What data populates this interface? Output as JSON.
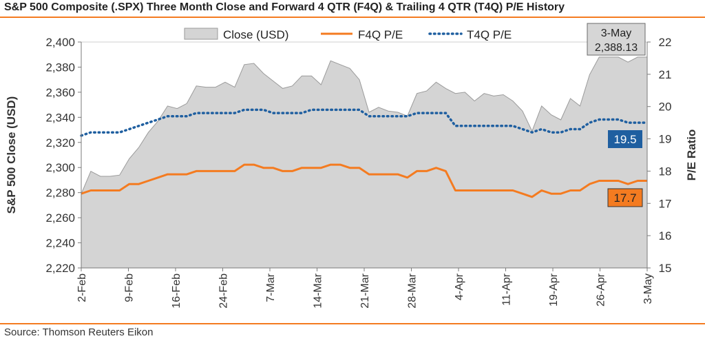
{
  "title": "S&P 500 Composite (.SPX) Three Month Close and Forward 4 QTR (F4Q) & Trailing 4 QTR (T4Q) P/E History",
  "source": "Source: Thomson Reuters Eikon",
  "colors": {
    "accent": "#f47b20",
    "area_fill": "#d4d4d4",
    "area_stroke": "#9a9a9a",
    "t4q": "#1f5fa0",
    "f4q": "#f47b20"
  },
  "chart_data": {
    "type": "area",
    "ylabel": "S&P 500 Close (USD)",
    "y2label": "P/E Ratio",
    "ylim": [
      2220,
      2400
    ],
    "y2lim": [
      15,
      22
    ],
    "yticks": [
      "2,220",
      "2,240",
      "2,260",
      "2,280",
      "2,300",
      "2,320",
      "2,340",
      "2,360",
      "2,380",
      "2,400"
    ],
    "y2ticks": [
      "15",
      "16",
      "17",
      "18",
      "19",
      "20",
      "21",
      "22"
    ],
    "xticklabels": [
      "2-Feb",
      "9-Feb",
      "16-Feb",
      "24-Feb",
      "7-Mar",
      "14-Mar",
      "21-Mar",
      "28-Mar",
      "4-Apr",
      "11-Apr",
      "19-Apr",
      "26-Apr",
      "3-May"
    ],
    "legend": {
      "position": "top",
      "entries": [
        "Close (USD)",
        "F4Q P/E",
        "T4Q P/E"
      ]
    },
    "series": [
      {
        "name": "Close (USD)",
        "axis": "left",
        "values": [
          2279,
          2297,
          2293,
          2293,
          2294,
          2307,
          2316,
          2328,
          2337,
          2349,
          2347,
          2351,
          2365,
          2364,
          2364,
          2368,
          2364,
          2382,
          2383,
          2375,
          2369,
          2363,
          2365,
          2373,
          2373,
          2366,
          2385,
          2382,
          2379,
          2370,
          2344,
          2348,
          2345,
          2344,
          2341,
          2359,
          2361,
          2368,
          2363,
          2359,
          2360,
          2353,
          2359,
          2357,
          2358,
          2353,
          2345,
          2329,
          2349,
          2342,
          2338,
          2355,
          2349,
          2374,
          2388,
          2388,
          2388,
          2384,
          2388,
          2388
        ]
      },
      {
        "name": "F4Q P/E",
        "axis": "right",
        "values": [
          17.3,
          17.4,
          17.4,
          17.4,
          17.4,
          17.6,
          17.6,
          17.7,
          17.8,
          17.9,
          17.9,
          17.9,
          18.0,
          18.0,
          18.0,
          18.0,
          18.0,
          18.2,
          18.2,
          18.1,
          18.1,
          18.0,
          18.0,
          18.1,
          18.1,
          18.1,
          18.2,
          18.2,
          18.1,
          18.1,
          17.9,
          17.9,
          17.9,
          17.9,
          17.8,
          18.0,
          18.0,
          18.1,
          18.0,
          17.4,
          17.4,
          17.4,
          17.4,
          17.4,
          17.4,
          17.4,
          17.3,
          17.2,
          17.4,
          17.3,
          17.3,
          17.4,
          17.4,
          17.6,
          17.7,
          17.7,
          17.7,
          17.6,
          17.7,
          17.7
        ]
      },
      {
        "name": "T4Q P/E",
        "axis": "right",
        "values": [
          19.1,
          19.2,
          19.2,
          19.2,
          19.2,
          19.3,
          19.4,
          19.5,
          19.6,
          19.7,
          19.7,
          19.7,
          19.8,
          19.8,
          19.8,
          19.8,
          19.8,
          19.9,
          19.9,
          19.9,
          19.8,
          19.8,
          19.8,
          19.8,
          19.9,
          19.9,
          19.9,
          19.9,
          19.9,
          19.9,
          19.7,
          19.7,
          19.7,
          19.7,
          19.7,
          19.8,
          19.8,
          19.8,
          19.8,
          19.4,
          19.4,
          19.4,
          19.4,
          19.4,
          19.4,
          19.4,
          19.3,
          19.2,
          19.3,
          19.2,
          19.2,
          19.3,
          19.3,
          19.5,
          19.6,
          19.6,
          19.6,
          19.5,
          19.5,
          19.5
        ]
      }
    ],
    "annotations": [
      {
        "name": "last-close-callout",
        "lines": [
          "3-May",
          "2,388.13"
        ]
      },
      {
        "name": "t4q-last-label",
        "text": "19.5"
      },
      {
        "name": "f4q-last-label",
        "text": "17.7"
      }
    ]
  }
}
